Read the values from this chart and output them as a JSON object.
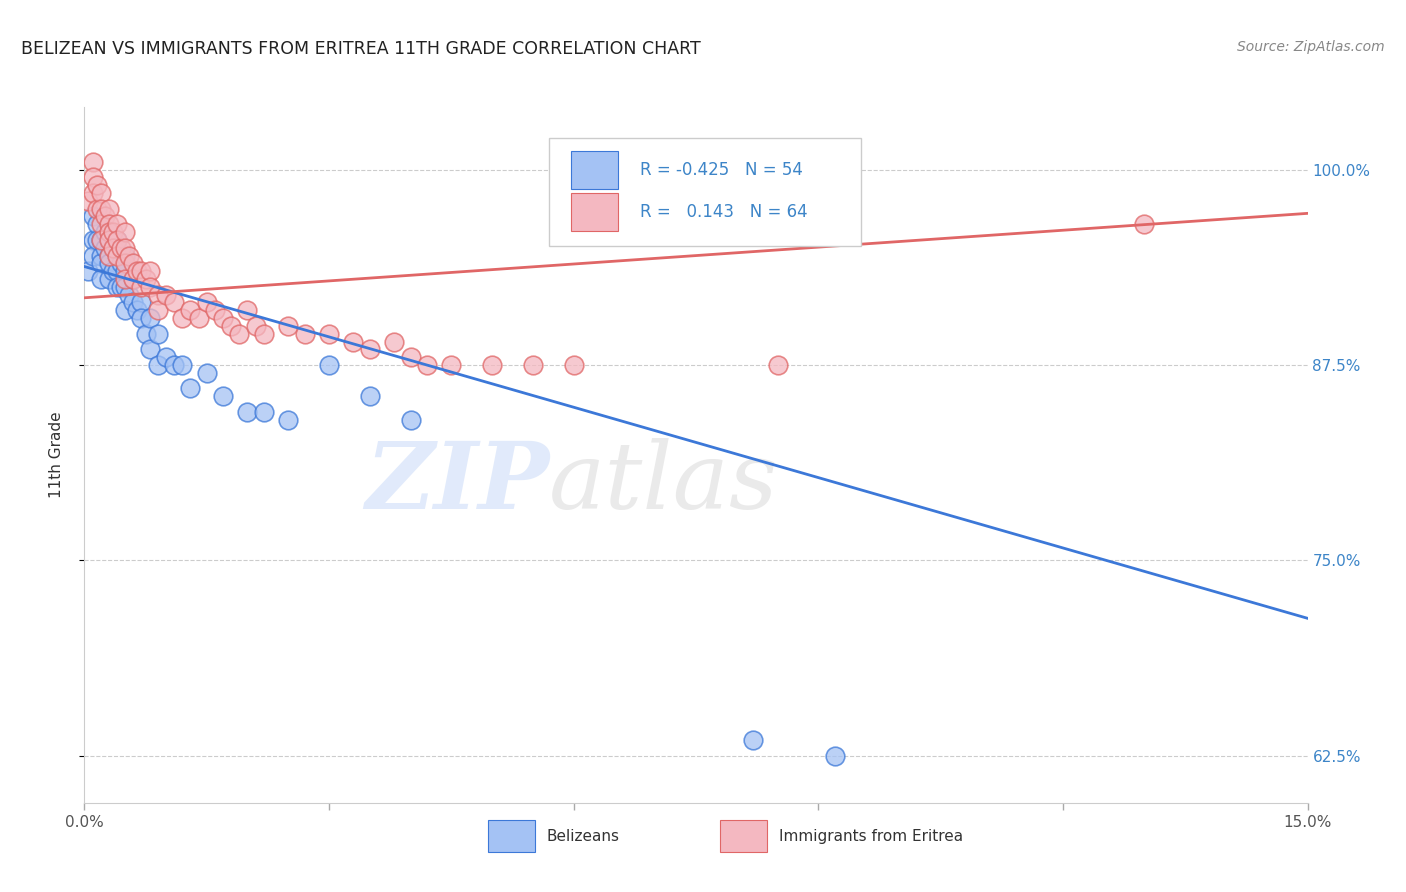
{
  "title": "BELIZEAN VS IMMIGRANTS FROM ERITREA 11TH GRADE CORRELATION CHART",
  "source": "Source: ZipAtlas.com",
  "ylabel": "11th Grade",
  "xlim": [
    0.0,
    0.15
  ],
  "ylim": [
    0.595,
    1.04
  ],
  "xticks": [
    0.0,
    0.03,
    0.06,
    0.09,
    0.12,
    0.15
  ],
  "xticklabels": [
    "0.0%",
    "",
    "",
    "",
    "",
    "15.0%"
  ],
  "ytick_positions": [
    0.625,
    0.75,
    0.875,
    1.0
  ],
  "ytick_labels": [
    "62.5%",
    "75.0%",
    "87.5%",
    "100.0%"
  ],
  "blue_color": "#a4c2f4",
  "pink_color": "#f4b8c1",
  "blue_line_color": "#3c78d8",
  "pink_line_color": "#e06666",
  "legend_R_blue": "-0.425",
  "legend_N_blue": "54",
  "legend_R_pink": "0.143",
  "legend_N_pink": "64",
  "watermark": "ZIPatlas",
  "watermark_blue": "#c9daf8",
  "watermark_gray": "#d9d9d9",
  "blue_trend_x0": 0.0,
  "blue_trend_y0": 0.938,
  "blue_trend_x1": 0.15,
  "blue_trend_y1": 0.713,
  "pink_trend_x0": 0.0,
  "pink_trend_y0": 0.918,
  "pink_trend_x1": 0.15,
  "pink_trend_y1": 0.972,
  "blue_x": [
    0.0005,
    0.001,
    0.001,
    0.001,
    0.0015,
    0.0015,
    0.002,
    0.002,
    0.002,
    0.002,
    0.0025,
    0.0025,
    0.003,
    0.003,
    0.003,
    0.003,
    0.003,
    0.0035,
    0.0035,
    0.004,
    0.004,
    0.004,
    0.004,
    0.0045,
    0.0045,
    0.005,
    0.005,
    0.005,
    0.005,
    0.0055,
    0.006,
    0.006,
    0.0065,
    0.007,
    0.007,
    0.0075,
    0.008,
    0.008,
    0.009,
    0.009,
    0.01,
    0.011,
    0.012,
    0.013,
    0.015,
    0.017,
    0.02,
    0.022,
    0.025,
    0.03,
    0.035,
    0.04,
    0.082,
    0.092
  ],
  "blue_y": [
    0.935,
    0.97,
    0.955,
    0.945,
    0.965,
    0.955,
    0.955,
    0.945,
    0.94,
    0.93,
    0.96,
    0.95,
    0.96,
    0.955,
    0.945,
    0.94,
    0.93,
    0.95,
    0.935,
    0.955,
    0.945,
    0.935,
    0.925,
    0.94,
    0.925,
    0.945,
    0.935,
    0.925,
    0.91,
    0.92,
    0.93,
    0.915,
    0.91,
    0.915,
    0.905,
    0.895,
    0.905,
    0.885,
    0.895,
    0.875,
    0.88,
    0.875,
    0.875,
    0.86,
    0.87,
    0.855,
    0.845,
    0.845,
    0.84,
    0.875,
    0.855,
    0.84,
    0.635,
    0.625
  ],
  "pink_x": [
    0.0005,
    0.001,
    0.001,
    0.001,
    0.0015,
    0.0015,
    0.002,
    0.002,
    0.002,
    0.002,
    0.0025,
    0.003,
    0.003,
    0.003,
    0.003,
    0.003,
    0.0035,
    0.0035,
    0.004,
    0.004,
    0.004,
    0.0045,
    0.005,
    0.005,
    0.005,
    0.005,
    0.0055,
    0.006,
    0.006,
    0.0065,
    0.007,
    0.007,
    0.0075,
    0.008,
    0.008,
    0.009,
    0.009,
    0.01,
    0.011,
    0.012,
    0.013,
    0.014,
    0.015,
    0.016,
    0.017,
    0.018,
    0.019,
    0.02,
    0.021,
    0.022,
    0.025,
    0.027,
    0.03,
    0.033,
    0.035,
    0.038,
    0.04,
    0.042,
    0.045,
    0.05,
    0.055,
    0.06,
    0.085,
    0.13
  ],
  "pink_y": [
    0.98,
    1.005,
    0.995,
    0.985,
    0.99,
    0.975,
    0.985,
    0.975,
    0.965,
    0.955,
    0.97,
    0.975,
    0.965,
    0.96,
    0.955,
    0.945,
    0.96,
    0.95,
    0.965,
    0.955,
    0.945,
    0.95,
    0.96,
    0.95,
    0.94,
    0.93,
    0.945,
    0.94,
    0.93,
    0.935,
    0.935,
    0.925,
    0.93,
    0.935,
    0.925,
    0.92,
    0.91,
    0.92,
    0.915,
    0.905,
    0.91,
    0.905,
    0.915,
    0.91,
    0.905,
    0.9,
    0.895,
    0.91,
    0.9,
    0.895,
    0.9,
    0.895,
    0.895,
    0.89,
    0.885,
    0.89,
    0.88,
    0.875,
    0.875,
    0.875,
    0.875,
    0.875,
    0.875,
    0.965
  ]
}
